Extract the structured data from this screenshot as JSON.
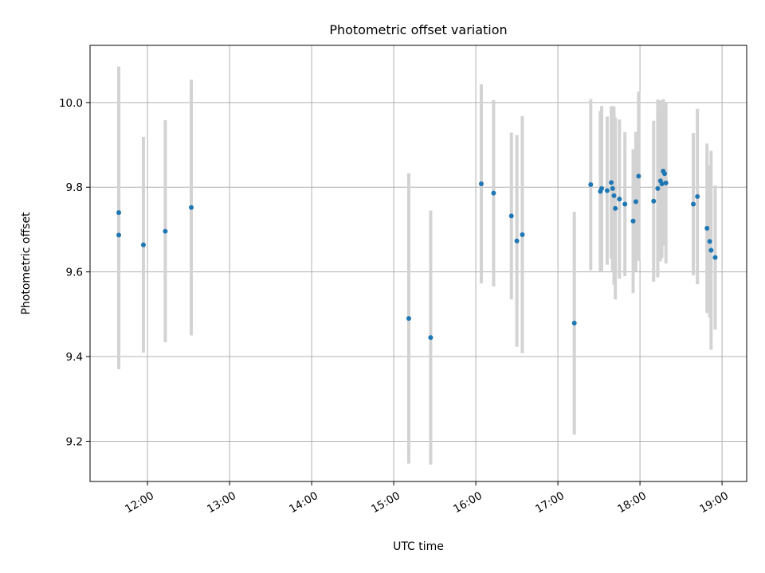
{
  "chart_data": {
    "type": "scatter",
    "title": "Photometric offset variation",
    "xlabel": "UTC time",
    "ylabel": "Photometric offset",
    "xlim": [
      "11:18",
      "19:18"
    ],
    "ylim": [
      9.105,
      10.135
    ],
    "grid": true,
    "x_ticks": [
      "12:00",
      "13:00",
      "14:00",
      "15:00",
      "16:00",
      "17:00",
      "18:00",
      "19:00"
    ],
    "y_ticks": [
      "9.2",
      "9.4",
      "9.6",
      "9.8",
      "10.0"
    ],
    "colors": {
      "points": "#1f77b4",
      "errorbars": "#d3d3d3",
      "grid": "#b0b0b0"
    },
    "series": [
      {
        "points": [
          {
            "x": "11:39",
            "y": 9.74,
            "err": 0.345
          },
          {
            "x": "11:39",
            "y": 9.687,
            "err": 0.317
          },
          {
            "x": "11:57",
            "y": 9.664,
            "err": 0.255
          },
          {
            "x": "12:13",
            "y": 9.696,
            "err": 0.262
          },
          {
            "x": "12:32",
            "y": 9.752,
            "err": 0.302
          },
          {
            "x": "15:11",
            "y": 9.49,
            "err": 0.343
          },
          {
            "x": "15:27",
            "y": 9.445,
            "err": 0.3
          },
          {
            "x": "16:04",
            "y": 9.808,
            "err": 0.235
          },
          {
            "x": "16:13",
            "y": 9.786,
            "err": 0.22
          },
          {
            "x": "16:26",
            "y": 9.732,
            "err": 0.197
          },
          {
            "x": "16:30",
            "y": 9.673,
            "err": 0.25
          },
          {
            "x": "16:34",
            "y": 9.688,
            "err": 0.28
          },
          {
            "x": "17:12",
            "y": 9.479,
            "err": 0.263
          },
          {
            "x": "17:24",
            "y": 9.806,
            "err": 0.202
          },
          {
            "x": "17:31",
            "y": 9.79,
            "err": 0.19
          },
          {
            "x": "17:32",
            "y": 9.797,
            "err": 0.195
          },
          {
            "x": "17:36",
            "y": 9.792,
            "err": 0.175
          },
          {
            "x": "17:39",
            "y": 9.811,
            "err": 0.18
          },
          {
            "x": "17:40",
            "y": 9.797,
            "err": 0.195
          },
          {
            "x": "17:41",
            "y": 9.78,
            "err": 0.21
          },
          {
            "x": "17:42",
            "y": 9.75,
            "err": 0.215
          },
          {
            "x": "17:45",
            "y": 9.772,
            "err": 0.188
          },
          {
            "x": "17:49",
            "y": 9.76,
            "err": 0.17
          },
          {
            "x": "17:55",
            "y": 9.72,
            "err": 0.17
          },
          {
            "x": "17:57",
            "y": 9.766,
            "err": 0.165
          },
          {
            "x": "17:59",
            "y": 9.826,
            "err": 0.2
          },
          {
            "x": "18:10",
            "y": 9.767,
            "err": 0.19
          },
          {
            "x": "18:13",
            "y": 9.797,
            "err": 0.21
          },
          {
            "x": "18:15",
            "y": 9.815,
            "err": 0.19
          },
          {
            "x": "18:16",
            "y": 9.808,
            "err": 0.175
          },
          {
            "x": "18:17",
            "y": 9.838,
            "err": 0.17
          },
          {
            "x": "18:18",
            "y": 9.832,
            "err": 0.17
          },
          {
            "x": "18:19",
            "y": 9.81,
            "err": 0.19
          },
          {
            "x": "18:39",
            "y": 9.76,
            "err": 0.168
          },
          {
            "x": "18:42",
            "y": 9.778,
            "err": 0.207
          },
          {
            "x": "18:49",
            "y": 9.703,
            "err": 0.2
          },
          {
            "x": "18:51",
            "y": 9.672,
            "err": 0.18
          },
          {
            "x": "18:52",
            "y": 9.651,
            "err": 0.235
          },
          {
            "x": "18:55",
            "y": 9.634,
            "err": 0.17
          }
        ]
      }
    ]
  }
}
